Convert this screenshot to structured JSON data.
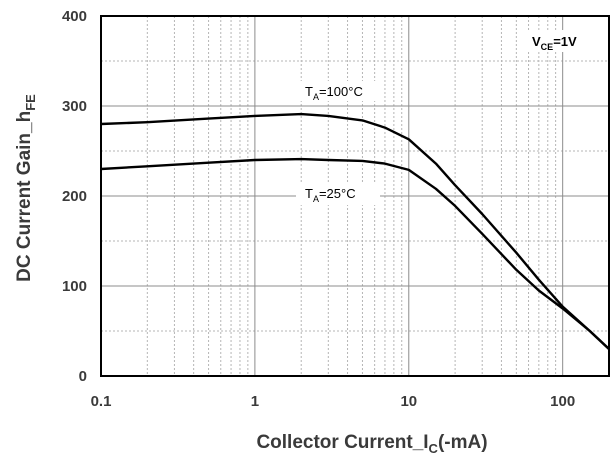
{
  "chart_data": {
    "type": "line",
    "x_scale": "log",
    "xlim": [
      0.1,
      200
    ],
    "ylim": [
      0,
      400
    ],
    "grid": true,
    "x_ticks": [
      "0.1",
      "1",
      "10",
      "100"
    ],
    "y_ticks": [
      "0",
      "100",
      "200",
      "300",
      "400"
    ],
    "xlabel": {
      "main": "Collector Current_I",
      "sub": "C",
      "tail": "(-mA)"
    },
    "ylabel": {
      "main": "DC Current Gain_h",
      "sub": "FE"
    },
    "condition": {
      "main": "V",
      "sub": "CE",
      "tail": "=1V"
    },
    "series": [
      {
        "name": "TA=100°C",
        "label": {
          "main": "T",
          "sub": "A",
          "tail": "=100°C"
        },
        "x": [
          0.1,
          0.2,
          0.5,
          1,
          2,
          3,
          5,
          7,
          10,
          15,
          20,
          30,
          50,
          70,
          100,
          150,
          200
        ],
        "y": [
          280,
          282,
          286,
          289,
          291,
          289,
          284,
          276,
          263,
          236,
          212,
          180,
          137,
          107,
          77,
          50,
          30
        ]
      },
      {
        "name": "TA=25°C",
        "label": {
          "main": "T",
          "sub": "A",
          "tail": "=25°C"
        },
        "x": [
          0.1,
          0.2,
          0.5,
          1,
          2,
          3,
          5,
          7,
          10,
          15,
          20,
          30,
          50,
          70,
          100,
          150,
          200
        ],
        "y": [
          230,
          233,
          237,
          240,
          241,
          240,
          239,
          236,
          229,
          208,
          189,
          158,
          118,
          95,
          75,
          50,
          30
        ]
      }
    ]
  }
}
